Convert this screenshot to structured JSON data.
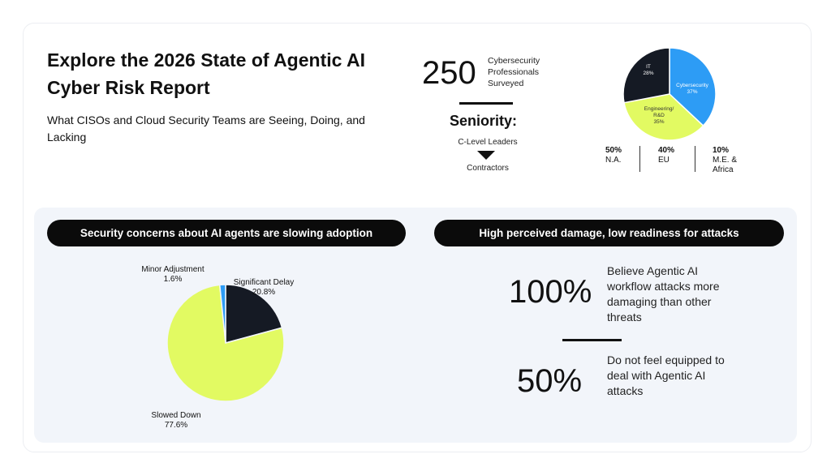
{
  "header": {
    "title": "Explore the 2026 State of Agentic AI Cyber Risk Report",
    "subtitle": "What CISOs and Cloud Security Teams are Seeing, Doing, and Lacking"
  },
  "survey": {
    "count": "250",
    "count_label": "Cybersecurity Professionals Surveyed",
    "seniority_heading": "Seniority:",
    "seniority_top": "C-Level Leaders",
    "seniority_bottom": "Contractors"
  },
  "regions": [
    {
      "pct": "50%",
      "label": "N.A."
    },
    {
      "pct": "40%",
      "label": "EU"
    },
    {
      "pct": "10%",
      "label": "M.E. & Africa"
    }
  ],
  "panels": {
    "left_heading": "Security concerns about AI agents are slowing adoption",
    "right_heading": "High perceived damage, low readiness for attacks"
  },
  "stats": [
    {
      "value": "100%",
      "text": "Believe Agentic AI workflow attacks more damaging than other threats"
    },
    {
      "value": "50%",
      "text": "Do not feel equipped to deal with Agentic AI attacks"
    }
  ],
  "colors": {
    "lime": "#e2fa62",
    "blue": "#2d9cf5",
    "dark": "#151a24"
  },
  "chart_data": [
    {
      "type": "pie",
      "title": "",
      "slices": [
        {
          "label": "Cybersecurity",
          "display": "Cybersecurity\n37%",
          "value": 37,
          "color": "#2d9cf5"
        },
        {
          "label": "Engineering/ R&D",
          "display": "Engineering/\nR&D\n35%",
          "value": 35,
          "color": "#e2fa62"
        },
        {
          "label": "IT",
          "display": "IT\n28%",
          "value": 28,
          "color": "#151a24"
        }
      ]
    },
    {
      "type": "pie",
      "title": "",
      "slices": [
        {
          "label": "Significant Delay",
          "display": "20.8%",
          "value": 20.8,
          "color": "#151a24"
        },
        {
          "label": "Slowed Down",
          "display": "77.6%",
          "value": 77.6,
          "color": "#e2fa62"
        },
        {
          "label": "Minor Adjustment",
          "display": "1.6%",
          "value": 1.6,
          "color": "#2d9cf5"
        }
      ]
    }
  ]
}
